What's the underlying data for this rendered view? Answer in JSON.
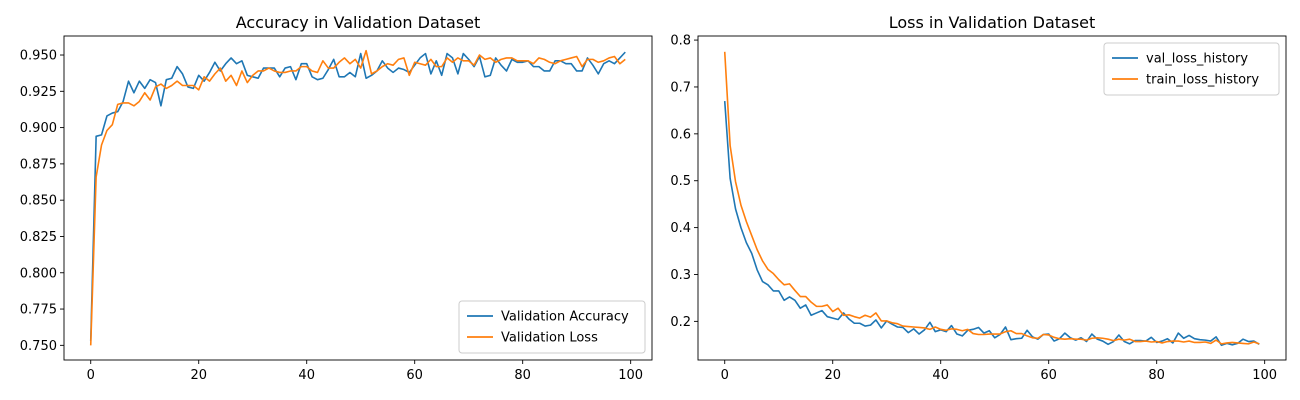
{
  "chart_data": [
    {
      "type": "line",
      "title": "Accuracy in Validation Dataset",
      "xlabel": "",
      "ylabel": "",
      "xlim": [
        -4.95,
        103.95
      ],
      "ylim": [
        0.7399,
        0.9631
      ],
      "xticks": [
        "0",
        "20",
        "40",
        "60",
        "80",
        "100"
      ],
      "yticks": [
        "0.750",
        "0.775",
        "0.800",
        "0.825",
        "0.850",
        "0.875",
        "0.900",
        "0.925",
        "0.950"
      ],
      "legend": "lower right",
      "grid": false,
      "x": [
        0,
        1,
        2,
        3,
        4,
        5,
        6,
        7,
        8,
        9,
        10,
        11,
        12,
        13,
        14,
        15,
        16,
        17,
        18,
        19,
        20,
        21,
        22,
        23,
        24,
        25,
        26,
        27,
        28,
        29,
        30,
        31,
        32,
        33,
        34,
        35,
        36,
        37,
        38,
        39,
        40,
        41,
        42,
        43,
        44,
        45,
        46,
        47,
        48,
        49,
        50,
        51,
        52,
        53,
        54,
        55,
        56,
        57,
        58,
        59,
        60,
        61,
        62,
        63,
        64,
        65,
        66,
        67,
        68,
        69,
        70,
        71,
        72,
        73,
        74,
        75,
        76,
        77,
        78,
        79,
        80,
        81,
        82,
        83,
        84,
        85,
        86,
        87,
        88,
        89,
        90,
        91,
        92,
        93,
        94,
        95,
        96,
        97,
        98,
        99
      ],
      "series": [
        {
          "name": "Validation Accuracy",
          "color": "#1f77b4",
          "values": [
            0.753,
            0.894,
            0.895,
            0.908,
            0.91,
            0.911,
            0.918,
            0.932,
            0.924,
            0.932,
            0.927,
            0.933,
            0.931,
            0.915,
            0.933,
            0.934,
            0.942,
            0.937,
            0.928,
            0.927,
            0.936,
            0.932,
            0.938,
            0.945,
            0.939,
            0.944,
            0.948,
            0.944,
            0.946,
            0.936,
            0.935,
            0.934,
            0.941,
            0.941,
            0.941,
            0.935,
            0.941,
            0.942,
            0.933,
            0.944,
            0.944,
            0.935,
            0.933,
            0.934,
            0.94,
            0.947,
            0.935,
            0.935,
            0.938,
            0.935,
            0.951,
            0.934,
            0.936,
            0.939,
            0.946,
            0.941,
            0.938,
            0.941,
            0.94,
            0.938,
            0.943,
            0.948,
            0.951,
            0.937,
            0.946,
            0.936,
            0.951,
            0.948,
            0.937,
            0.951,
            0.947,
            0.942,
            0.949,
            0.935,
            0.936,
            0.948,
            0.943,
            0.939,
            0.947,
            0.945,
            0.945,
            0.946,
            0.942,
            0.942,
            0.939,
            0.939,
            0.946,
            0.946,
            0.944,
            0.944,
            0.939,
            0.939,
            0.948,
            0.943,
            0.937,
            0.944,
            0.946,
            0.944,
            0.948,
            0.952
          ]
        },
        {
          "name": "Validation Loss",
          "color": "#ff7f0e",
          "values": [
            0.75,
            0.866,
            0.888,
            0.898,
            0.902,
            0.916,
            0.917,
            0.917,
            0.915,
            0.918,
            0.924,
            0.919,
            0.928,
            0.93,
            0.927,
            0.929,
            0.932,
            0.929,
            0.929,
            0.929,
            0.926,
            0.935,
            0.932,
            0.937,
            0.941,
            0.932,
            0.936,
            0.929,
            0.939,
            0.931,
            0.936,
            0.939,
            0.939,
            0.941,
            0.939,
            0.938,
            0.938,
            0.939,
            0.939,
            0.942,
            0.942,
            0.939,
            0.938,
            0.946,
            0.941,
            0.941,
            0.945,
            0.948,
            0.944,
            0.947,
            0.941,
            0.953,
            0.937,
            0.939,
            0.942,
            0.944,
            0.943,
            0.947,
            0.948,
            0.936,
            0.945,
            0.944,
            0.943,
            0.947,
            0.942,
            0.942,
            0.948,
            0.945,
            0.948,
            0.946,
            0.946,
            0.943,
            0.95,
            0.947,
            0.948,
            0.945,
            0.947,
            0.948,
            0.948,
            0.946,
            0.946,
            0.946,
            0.944,
            0.948,
            0.947,
            0.945,
            0.944,
            0.946,
            0.947,
            0.948,
            0.949,
            0.942,
            0.947,
            0.947,
            0.945,
            0.946,
            0.948,
            0.949,
            0.944,
            0.947
          ]
        }
      ]
    },
    {
      "type": "line",
      "title": "Loss in Validation Dataset",
      "xlabel": "",
      "ylabel": "",
      "xlim": [
        -4.95,
        103.95
      ],
      "ylim": [
        0.1176,
        0.8087
      ],
      "xticks": [
        "0",
        "20",
        "40",
        "60",
        "80",
        "100"
      ],
      "yticks": [
        "0.2",
        "0.3",
        "0.4",
        "0.5",
        "0.6",
        "0.7",
        "0.8"
      ],
      "legend": "upper right",
      "grid": false,
      "x": [
        0,
        1,
        2,
        3,
        4,
        5,
        6,
        7,
        8,
        9,
        10,
        11,
        12,
        13,
        14,
        15,
        16,
        17,
        18,
        19,
        20,
        21,
        22,
        23,
        24,
        25,
        26,
        27,
        28,
        29,
        30,
        31,
        32,
        33,
        34,
        35,
        36,
        37,
        38,
        39,
        40,
        41,
        42,
        43,
        44,
        45,
        46,
        47,
        48,
        49,
        50,
        51,
        52,
        53,
        54,
        55,
        56,
        57,
        58,
        59,
        60,
        61,
        62,
        63,
        64,
        65,
        66,
        67,
        68,
        69,
        70,
        71,
        72,
        73,
        74,
        75,
        76,
        77,
        78,
        79,
        80,
        81,
        82,
        83,
        84,
        85,
        86,
        87,
        88,
        89,
        90,
        91,
        92,
        93,
        94,
        95,
        96,
        97,
        98,
        99
      ],
      "series": [
        {
          "name": "val_loss_history",
          "color": "#1f77b4",
          "values": [
            0.67,
            0.505,
            0.44,
            0.4,
            0.368,
            0.345,
            0.31,
            0.285,
            0.278,
            0.265,
            0.265,
            0.245,
            0.252,
            0.245,
            0.228,
            0.235,
            0.213,
            0.218,
            0.223,
            0.21,
            0.207,
            0.204,
            0.218,
            0.205,
            0.196,
            0.196,
            0.19,
            0.192,
            0.203,
            0.186,
            0.201,
            0.194,
            0.188,
            0.187,
            0.176,
            0.184,
            0.173,
            0.182,
            0.198,
            0.178,
            0.182,
            0.178,
            0.191,
            0.173,
            0.169,
            0.181,
            0.183,
            0.187,
            0.175,
            0.18,
            0.165,
            0.172,
            0.188,
            0.161,
            0.163,
            0.164,
            0.181,
            0.167,
            0.162,
            0.172,
            0.173,
            0.158,
            0.163,
            0.175,
            0.165,
            0.16,
            0.165,
            0.157,
            0.173,
            0.162,
            0.158,
            0.151,
            0.157,
            0.171,
            0.157,
            0.152,
            0.159,
            0.159,
            0.158,
            0.166,
            0.155,
            0.158,
            0.163,
            0.154,
            0.175,
            0.164,
            0.17,
            0.163,
            0.161,
            0.16,
            0.158,
            0.167,
            0.149,
            0.153,
            0.15,
            0.153,
            0.162,
            0.157,
            0.158,
            0.151
          ]
        },
        {
          "name": "train_loss_history",
          "color": "#ff7f0e",
          "values": [
            0.775,
            0.575,
            0.498,
            0.448,
            0.413,
            0.383,
            0.353,
            0.329,
            0.311,
            0.302,
            0.289,
            0.278,
            0.28,
            0.266,
            0.253,
            0.253,
            0.241,
            0.232,
            0.232,
            0.235,
            0.221,
            0.228,
            0.213,
            0.214,
            0.21,
            0.207,
            0.213,
            0.209,
            0.218,
            0.201,
            0.201,
            0.197,
            0.195,
            0.19,
            0.189,
            0.188,
            0.187,
            0.186,
            0.183,
            0.188,
            0.183,
            0.181,
            0.184,
            0.183,
            0.18,
            0.183,
            0.174,
            0.172,
            0.172,
            0.173,
            0.173,
            0.173,
            0.178,
            0.18,
            0.174,
            0.174,
            0.169,
            0.165,
            0.164,
            0.172,
            0.171,
            0.166,
            0.163,
            0.162,
            0.163,
            0.162,
            0.162,
            0.16,
            0.164,
            0.165,
            0.164,
            0.162,
            0.159,
            0.162,
            0.16,
            0.162,
            0.157,
            0.157,
            0.158,
            0.156,
            0.157,
            0.154,
            0.157,
            0.158,
            0.158,
            0.156,
            0.158,
            0.155,
            0.155,
            0.156,
            0.153,
            0.16,
            0.152,
            0.154,
            0.155,
            0.154,
            0.153,
            0.152,
            0.156,
            0.152
          ]
        }
      ]
    }
  ]
}
